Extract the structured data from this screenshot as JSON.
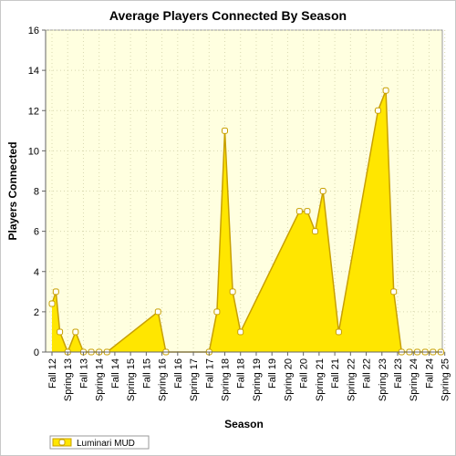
{
  "chart_data": {
    "type": "area",
    "title": "Average Players Connected By Season",
    "xlabel": "Season",
    "ylabel": "Players Connected",
    "ylim": [
      0,
      16
    ],
    "yticks": [
      0,
      2,
      4,
      6,
      8,
      10,
      12,
      14,
      16
    ],
    "grid": true,
    "legend_position": "bottom-left",
    "colors": {
      "fill": "#ffe600",
      "line": "#c8a000",
      "marker_fill": "#ffffff",
      "plot_bg": "#ffffe0",
      "grid": "#d8d8b0"
    },
    "categories": [
      "Fall 12",
      "Spring 13",
      "Fall 13",
      "Spring 14",
      "Fall 14",
      "Spring 15",
      "Fall 15",
      "Spring 16",
      "Fall 16",
      "Spring 17",
      "Fall 17",
      "Spring 18",
      "Fall 18",
      "Spring 19",
      "Fall 19",
      "Spring 20",
      "Fall 20",
      "Spring 21",
      "Fall 21",
      "Spring 22",
      "Fall 22",
      "Spring 23",
      "Fall 23",
      "Spring 24",
      "Fall 24",
      "Spring 25"
    ],
    "series": [
      {
        "name": "Luminari MUD",
        "points": [
          {
            "x": 0.0,
            "y": 2.4
          },
          {
            "x": 0.25,
            "y": 3.0
          },
          {
            "x": 0.5,
            "y": 1.0
          },
          {
            "x": 1.0,
            "y": 0.0
          },
          {
            "x": 1.5,
            "y": 1.0
          },
          {
            "x": 2.0,
            "y": 0.0
          },
          {
            "x": 2.5,
            "y": 0.0
          },
          {
            "x": 3.0,
            "y": 0.0
          },
          {
            "x": 3.5,
            "y": 0.0
          },
          {
            "x": 6.75,
            "y": 2.0
          },
          {
            "x": 7.25,
            "y": 0.0
          },
          {
            "x": 10.0,
            "y": 0.0
          },
          {
            "x": 10.5,
            "y": 2.0
          },
          {
            "x": 11.0,
            "y": 11.0
          },
          {
            "x": 11.5,
            "y": 3.0
          },
          {
            "x": 12.0,
            "y": 1.0
          },
          {
            "x": 15.75,
            "y": 7.0
          },
          {
            "x": 16.25,
            "y": 7.0
          },
          {
            "x": 16.75,
            "y": 6.0
          },
          {
            "x": 17.25,
            "y": 8.0
          },
          {
            "x": 18.25,
            "y": 1.0
          },
          {
            "x": 20.75,
            "y": 12.0
          },
          {
            "x": 21.25,
            "y": 13.0
          },
          {
            "x": 21.75,
            "y": 3.0
          },
          {
            "x": 22.25,
            "y": 0.0
          },
          {
            "x": 22.75,
            "y": 0.0
          },
          {
            "x": 23.25,
            "y": 0.0
          },
          {
            "x": 23.75,
            "y": 0.0
          },
          {
            "x": 24.25,
            "y": 0.0
          },
          {
            "x": 24.75,
            "y": 0.0
          }
        ]
      }
    ]
  }
}
